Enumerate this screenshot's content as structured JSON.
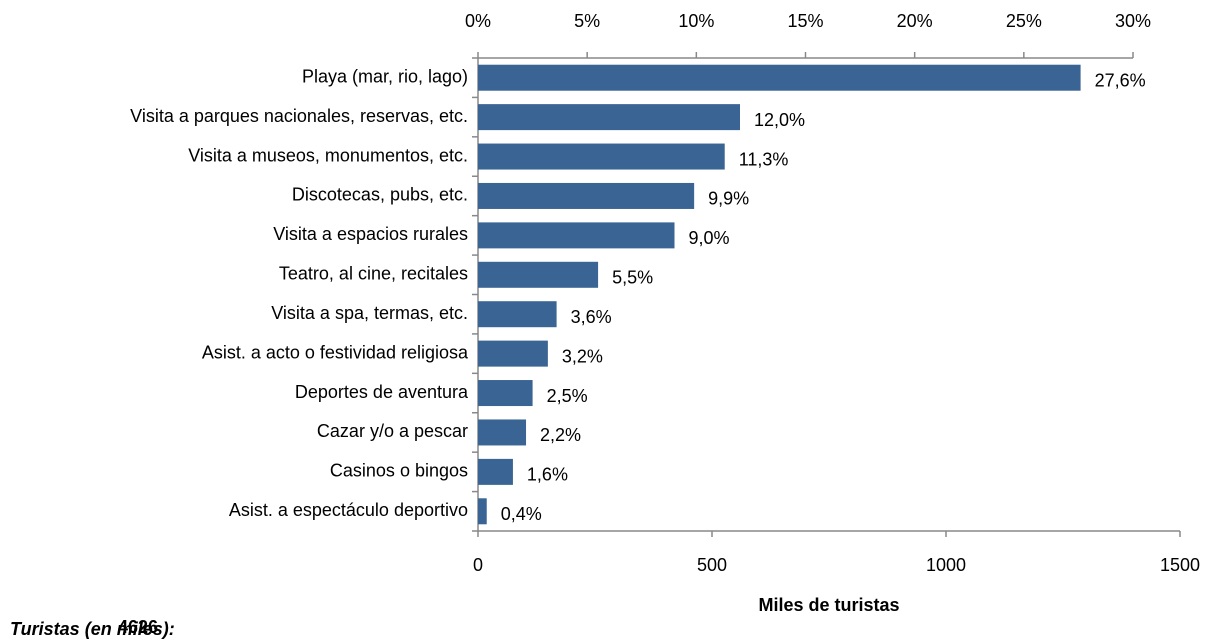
{
  "chart_data": {
    "type": "bar",
    "orientation": "horizontal",
    "categories": [
      "Playa (mar, rio, lago)",
      "Visita a parques nacionales, reservas, etc.",
      "Visita a museos, monumentos, etc.",
      "Discotecas, pubs, etc.",
      "Visita a espacios rurales",
      "Teatro, al cine, recitales",
      "Visita a spa,  termas, etc.",
      "Asist. a acto o festividad religiosa",
      "Deportes de aventura",
      "Cazar y/o a pescar",
      "Casinos o bingos",
      "Asist. a espectáculo deportivo"
    ],
    "values": [
      27.6,
      12.0,
      11.3,
      9.9,
      9.0,
      5.5,
      3.6,
      3.2,
      2.5,
      2.2,
      1.6,
      0.4
    ],
    "value_labels": [
      "27,6%",
      "12,0%",
      "11,3%",
      "9,9%",
      "9,0%",
      "5,5%",
      "3,6%",
      "3,2%",
      "2,5%",
      "2,2%",
      "1,6%",
      "0,4%"
    ],
    "color": "#3a6494",
    "xlim": [
      0,
      30
    ],
    "xticks": [
      {
        "value": 0,
        "label": "0%"
      },
      {
        "value": 5,
        "label": "5%"
      },
      {
        "value": 10,
        "label": "10%"
      },
      {
        "value": 15,
        "label": "15%"
      },
      {
        "value": 20,
        "label": "20%"
      },
      {
        "value": 25,
        "label": "25%"
      },
      {
        "value": 30,
        "label": "30%"
      }
    ],
    "x2lim": [
      0,
      1500
    ],
    "x2ticks": [
      0,
      500,
      1000,
      1500
    ],
    "x2_label": "Miles de turistas",
    "footer_label": "Turistas (en miles):",
    "footer_value": "4626"
  }
}
